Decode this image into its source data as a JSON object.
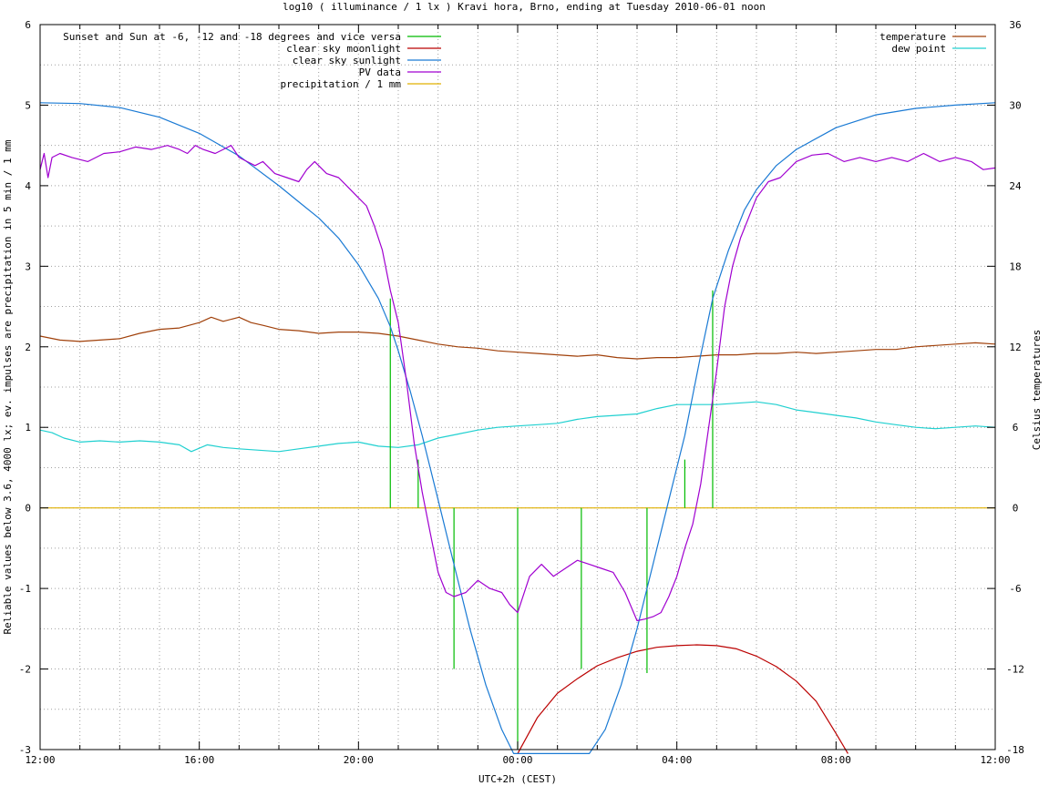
{
  "chart_data": {
    "type": "line",
    "title": "log10 ( illuminance / 1 lx ) Kravi hora, Brno, ending at Tuesday 2010-06-01 noon",
    "xlabel": "UTC+2h (CEST)",
    "ylabel": "Reliable values below 3.6, 4000 lx; ev. impulses are precipitation in 5 min / 1 mm",
    "y2label": "Celsius temperatures",
    "x_unit": "hours since 12:00",
    "xlim": [
      0,
      24
    ],
    "ylim": [
      -3,
      6
    ],
    "y2lim": [
      -18,
      36
    ],
    "grid": true,
    "x_ticks": [
      {
        "v": 0,
        "label": "12:00"
      },
      {
        "v": 4,
        "label": "16:00"
      },
      {
        "v": 8,
        "label": "20:00"
      },
      {
        "v": 12,
        "label": "00:00"
      },
      {
        "v": 16,
        "label": "04:00"
      },
      {
        "v": 20,
        "label": "08:00"
      },
      {
        "v": 24,
        "label": "12:00"
      }
    ],
    "y_ticks": [
      {
        "v": -3,
        "label": "-3"
      },
      {
        "v": -2,
        "label": "-2"
      },
      {
        "v": -1,
        "label": "-1"
      },
      {
        "v": 0,
        "label": "0"
      },
      {
        "v": 1,
        "label": "1"
      },
      {
        "v": 2,
        "label": "2"
      },
      {
        "v": 3,
        "label": "3"
      },
      {
        "v": 4,
        "label": "4"
      },
      {
        "v": 5,
        "label": "5"
      },
      {
        "v": 6,
        "label": "6"
      }
    ],
    "y2_ticks": [
      {
        "v": -18,
        "label": "-18"
      },
      {
        "v": -12,
        "label": "-12"
      },
      {
        "v": -6,
        "label": "-6"
      },
      {
        "v": 0,
        "label": "0"
      },
      {
        "v": 6,
        "label": "6"
      },
      {
        "v": 12,
        "label": "12"
      },
      {
        "v": 18,
        "label": "18"
      },
      {
        "v": 24,
        "label": "24"
      },
      {
        "v": 30,
        "label": "30"
      },
      {
        "v": 36,
        "label": "36"
      }
    ],
    "legend_left": {
      "placement": "top-left",
      "entries": [
        {
          "name": "Sunset and Sun at -6, -12 and -18 degrees and vice versa",
          "color": "#00bb00"
        },
        {
          "name": "clear sky moonlight",
          "color": "#bb0000"
        },
        {
          "name": "clear sky sunlight",
          "color": "#1a7ad4"
        },
        {
          "name": "PV data",
          "color": "#a000d0"
        },
        {
          "name": "precipitation / 1 mm",
          "color": "#e0b000"
        }
      ]
    },
    "legend_right": {
      "placement": "top-right",
      "entries": [
        {
          "name": "temperature",
          "color": "#a0400a"
        },
        {
          "name": "dew point",
          "color": "#20d0d0"
        }
      ]
    },
    "impulses": {
      "name": "Sunset and Sun at -6, -12 and -18 degrees and vice versa",
      "color": "#00bb00",
      "points": [
        {
          "x": 8.8,
          "y": 2.6
        },
        {
          "x": 9.5,
          "y": 0.6
        },
        {
          "x": 10.4,
          "y": -2.0
        },
        {
          "x": 12.0,
          "y": -3.0
        },
        {
          "x": 13.6,
          "y": -2.0
        },
        {
          "x": 15.25,
          "y": -2.05
        },
        {
          "x": 16.2,
          "y": 0.6
        },
        {
          "x": 16.9,
          "y": 2.7
        }
      ]
    },
    "series": [
      {
        "name": "clear sky sunlight",
        "axis": "y",
        "color": "#1a7ad4",
        "x": [
          0,
          1,
          2,
          3,
          4,
          5,
          6,
          6.5,
          7,
          7.5,
          8,
          8.5,
          8.8,
          9,
          9.3,
          9.6,
          10,
          10.4,
          10.8,
          11.2,
          11.6,
          11.9,
          13.8,
          14.2,
          14.6,
          15,
          15.4,
          15.8,
          16.2,
          16.6,
          16.9,
          17.3,
          17.7,
          18,
          18.5,
          19,
          20,
          21,
          22,
          23,
          24
        ],
        "y": [
          5.03,
          5.02,
          4.97,
          4.85,
          4.65,
          4.37,
          4.0,
          3.8,
          3.6,
          3.35,
          3.02,
          2.6,
          2.25,
          1.95,
          1.45,
          0.9,
          0.1,
          -0.7,
          -1.5,
          -2.2,
          -2.75,
          -3.05,
          -3.05,
          -2.75,
          -2.2,
          -1.5,
          -0.7,
          0.1,
          0.9,
          1.9,
          2.6,
          3.2,
          3.7,
          3.95,
          4.25,
          4.45,
          4.72,
          4.88,
          4.96,
          5.0,
          5.03
        ]
      },
      {
        "name": "clear sky moonlight",
        "axis": "y",
        "color": "#bb0000",
        "x": [
          12.0,
          12.5,
          13,
          13.5,
          14,
          14.5,
          15,
          15.5,
          16,
          16.5,
          17,
          17.5,
          18,
          18.5,
          19,
          19.5,
          20,
          20.3
        ],
        "y": [
          -3.05,
          -2.6,
          -2.3,
          -2.12,
          -1.96,
          -1.86,
          -1.78,
          -1.73,
          -1.71,
          -1.7,
          -1.71,
          -1.75,
          -1.84,
          -1.97,
          -2.15,
          -2.4,
          -2.8,
          -3.05
        ]
      },
      {
        "name": "PV data",
        "axis": "y",
        "color": "#a000d0",
        "x": [
          0,
          0.1,
          0.2,
          0.3,
          0.5,
          0.8,
          1.2,
          1.6,
          2.0,
          2.4,
          2.8,
          3.2,
          3.5,
          3.7,
          3.9,
          4.1,
          4.4,
          4.6,
          4.8,
          5.0,
          5.2,
          5.4,
          5.6,
          5.9,
          6.2,
          6.5,
          6.7,
          6.9,
          7.2,
          7.5,
          7.8,
          8.0,
          8.2,
          8.4,
          8.6,
          8.8,
          9.0,
          9.2,
          9.4,
          9.6,
          9.8,
          10.0,
          10.2,
          10.4,
          10.7,
          11.0,
          11.3,
          11.6,
          11.8,
          12.0,
          12.3,
          12.6,
          12.9,
          13.2,
          13.5,
          13.8,
          14.1,
          14.4,
          14.7,
          15.0,
          15.2,
          15.4,
          15.6,
          15.8,
          16.0,
          16.2,
          16.4,
          16.6,
          16.8,
          17.0,
          17.2,
          17.4,
          17.6,
          17.8,
          18.0,
          18.3,
          18.6,
          19.0,
          19.4,
          19.8,
          20.2,
          20.6,
          21.0,
          21.4,
          21.8,
          22.2,
          22.6,
          23.0,
          23.4,
          23.7,
          24.0
        ],
        "y": [
          4.2,
          4.4,
          4.1,
          4.35,
          4.4,
          4.35,
          4.3,
          4.4,
          4.42,
          4.48,
          4.45,
          4.5,
          4.45,
          4.4,
          4.5,
          4.45,
          4.4,
          4.45,
          4.5,
          4.35,
          4.3,
          4.25,
          4.3,
          4.15,
          4.1,
          4.05,
          4.2,
          4.3,
          4.15,
          4.1,
          3.95,
          3.85,
          3.75,
          3.5,
          3.2,
          2.7,
          2.3,
          1.6,
          0.8,
          0.2,
          -0.3,
          -0.8,
          -1.05,
          -1.1,
          -1.05,
          -0.9,
          -1.0,
          -1.05,
          -1.2,
          -1.3,
          -0.85,
          -0.7,
          -0.85,
          -0.75,
          -0.65,
          -0.7,
          -0.75,
          -0.8,
          -1.05,
          -1.4,
          -1.38,
          -1.35,
          -1.3,
          -1.1,
          -0.85,
          -0.5,
          -0.2,
          0.3,
          1.0,
          1.7,
          2.5,
          3.0,
          3.35,
          3.6,
          3.85,
          4.05,
          4.1,
          4.3,
          4.38,
          4.4,
          4.3,
          4.35,
          4.3,
          4.35,
          4.3,
          4.4,
          4.3,
          4.35,
          4.3,
          4.2,
          4.22
        ]
      },
      {
        "name": "precipitation / 1 mm",
        "axis": "y",
        "color": "#e0b000",
        "x": [
          0,
          24
        ],
        "y": [
          0,
          0
        ]
      },
      {
        "name": "temperature",
        "axis": "y2",
        "color": "#a0400a",
        "x": [
          0,
          0.5,
          1,
          1.5,
          2,
          2.5,
          3,
          3.5,
          4,
          4.3,
          4.6,
          5,
          5.3,
          5.6,
          6,
          6.5,
          7,
          7.5,
          8,
          8.5,
          9,
          9.5,
          10,
          10.5,
          11,
          11.5,
          12,
          12.5,
          13,
          13.5,
          14,
          14.5,
          15,
          15.5,
          16,
          16.5,
          17,
          17.5,
          18,
          18.5,
          19,
          19.5,
          20,
          20.5,
          21,
          21.5,
          22,
          22.5,
          23,
          23.5,
          24
        ],
        "y": [
          12.8,
          12.5,
          12.4,
          12.5,
          12.6,
          13.0,
          13.3,
          13.4,
          13.8,
          14.2,
          13.9,
          14.2,
          13.8,
          13.6,
          13.3,
          13.2,
          13.0,
          13.1,
          13.1,
          13.0,
          12.8,
          12.5,
          12.2,
          12.0,
          11.9,
          11.7,
          11.6,
          11.5,
          11.4,
          11.3,
          11.4,
          11.2,
          11.1,
          11.2,
          11.2,
          11.3,
          11.4,
          11.4,
          11.5,
          11.5,
          11.6,
          11.5,
          11.6,
          11.7,
          11.8,
          11.8,
          12.0,
          12.1,
          12.2,
          12.3,
          12.2
        ]
      },
      {
        "name": "dew point",
        "axis": "y2",
        "color": "#20d0d0",
        "x": [
          0,
          0.3,
          0.6,
          1,
          1.5,
          2,
          2.5,
          3,
          3.5,
          3.8,
          4.2,
          4.6,
          5,
          5.5,
          6,
          6.5,
          7,
          7.5,
          8,
          8.5,
          9,
          9.5,
          10,
          10.5,
          11,
          11.5,
          12,
          12.5,
          13,
          13.5,
          14,
          14.5,
          15,
          15.5,
          16,
          16.5,
          17,
          17.5,
          18,
          18.5,
          19,
          19.5,
          20,
          20.5,
          21,
          21.5,
          22,
          22.5,
          23,
          23.5,
          24
        ],
        "y": [
          5.8,
          5.6,
          5.2,
          4.9,
          5.0,
          4.9,
          5.0,
          4.9,
          4.7,
          4.2,
          4.7,
          4.5,
          4.4,
          4.3,
          4.2,
          4.4,
          4.6,
          4.8,
          4.9,
          4.6,
          4.5,
          4.7,
          5.2,
          5.5,
          5.8,
          6.0,
          6.1,
          6.2,
          6.3,
          6.6,
          6.8,
          6.9,
          7.0,
          7.4,
          7.7,
          7.7,
          7.7,
          7.8,
          7.9,
          7.7,
          7.3,
          7.1,
          6.9,
          6.7,
          6.4,
          6.2,
          6.0,
          5.9,
          6.0,
          6.1,
          6.0
        ]
      }
    ]
  }
}
